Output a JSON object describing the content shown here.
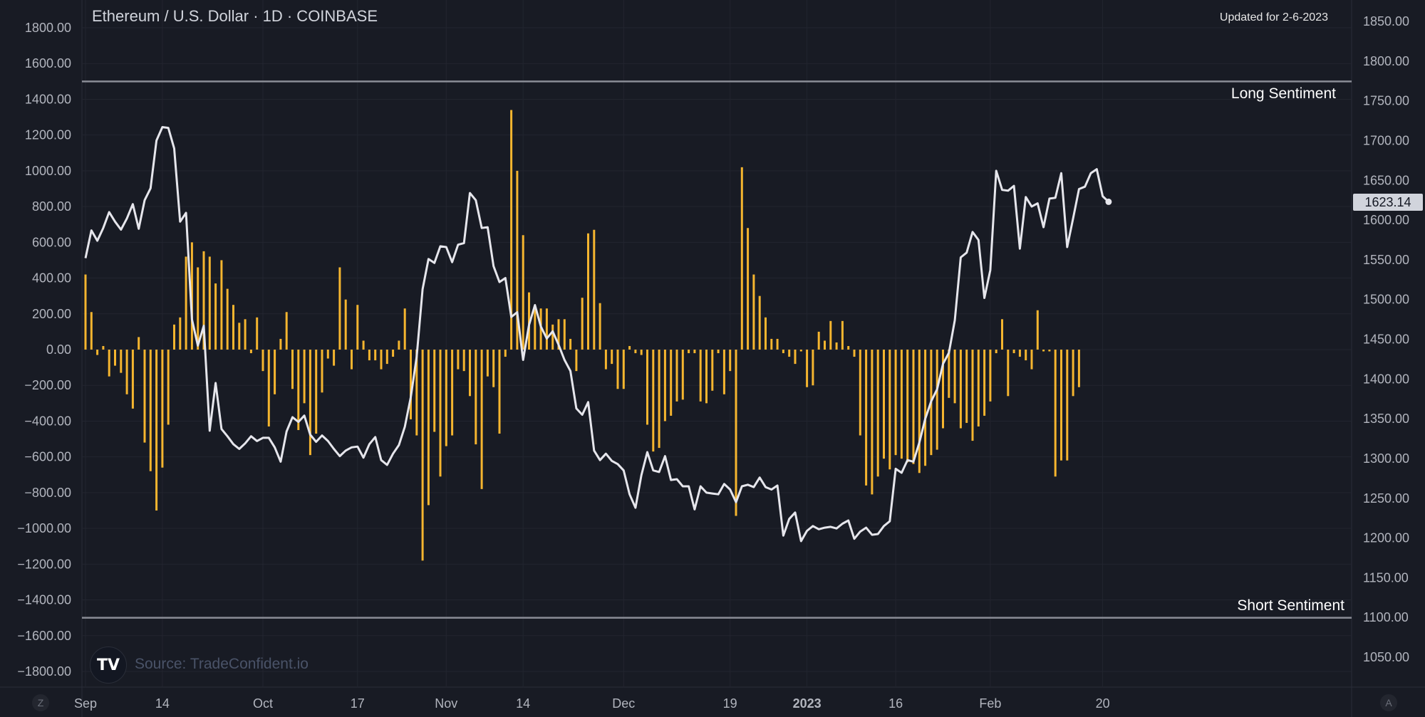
{
  "header": {
    "title": "Ethereum / U.S. Dollar · 1D · COINBASE",
    "updated": "Updated for 2-6-2023",
    "source": "Source: TradeConfident.io",
    "price_tag": "1623.14",
    "corner_left": "Z",
    "corner_right": "A"
  },
  "chart_data": {
    "type": "line+bar",
    "left_axis": {
      "ticks": [
        "1800.00",
        "1600.00",
        "1400.00",
        "1200.00",
        "1000.00",
        "800.00",
        "600.00",
        "400.00",
        "200.00",
        "0.00",
        "−200.00",
        "−400.00",
        "−600.00",
        "−800.00",
        "−1000.00",
        "−1200.00",
        "−1400.00",
        "−1600.00",
        "−1800.00"
      ],
      "range": [
        -1800,
        1800
      ]
    },
    "right_axis": {
      "ticks": [
        "1850.00",
        "1800.00",
        "1750.00",
        "1700.00",
        "1650.00",
        "1600.00",
        "1550.00",
        "1500.00",
        "1450.00",
        "1400.00",
        "1350.00",
        "1300.00",
        "1250.00",
        "1200.00",
        "1150.00",
        "1100.00",
        "1050.00"
      ],
      "range": [
        1050,
        1850
      ]
    },
    "x_ticks": [
      {
        "label": "Sep",
        "day": 0,
        "bold": false
      },
      {
        "label": "14",
        "day": 13,
        "bold": false
      },
      {
        "label": "Oct",
        "day": 30,
        "bold": false
      },
      {
        "label": "17",
        "day": 46,
        "bold": false
      },
      {
        "label": "Nov",
        "day": 61,
        "bold": false
      },
      {
        "label": "14",
        "day": 74,
        "bold": false
      },
      {
        "label": "Dec",
        "day": 91,
        "bold": false
      },
      {
        "label": "19",
        "day": 109,
        "bold": false
      },
      {
        "label": "2023",
        "day": 122,
        "bold": true
      },
      {
        "label": "16",
        "day": 137,
        "bold": false
      },
      {
        "label": "Feb",
        "day": 153,
        "bold": false
      },
      {
        "label": "20",
        "day": 172,
        "bold": false
      }
    ],
    "long_sentiment": {
      "label": "Long Sentiment",
      "value": 1500
    },
    "short_sentiment": {
      "label": "Short Sentiment",
      "value": -1500
    },
    "series": [
      {
        "name": "Sentiment",
        "axis": "left",
        "color": "#f5b52f",
        "type": "bar",
        "start_day": 0,
        "values": [
          420,
          210,
          -30,
          20,
          -150,
          -90,
          -130,
          -250,
          -330,
          70,
          -520,
          -680,
          -900,
          -660,
          -420,
          140,
          180,
          520,
          600,
          460,
          550,
          520,
          370,
          500,
          340,
          250,
          150,
          170,
          -20,
          180,
          -120,
          -430,
          -250,
          60,
          210,
          -220,
          -450,
          -300,
          -590,
          -470,
          -240,
          -50,
          -90,
          460,
          280,
          -110,
          250,
          50,
          -60,
          -60,
          -110,
          -80,
          -40,
          50,
          230,
          -390,
          -480,
          -1180,
          -870,
          -460,
          -710,
          -540,
          -480,
          -110,
          -120,
          -260,
          -530,
          -780,
          -150,
          -210,
          -470,
          -40,
          1340,
          1000,
          640,
          320,
          230,
          230,
          230,
          140,
          170,
          170,
          60,
          -120,
          290,
          650,
          670,
          260,
          -110,
          -80,
          -220,
          -220,
          20,
          -20,
          -30,
          -420,
          -570,
          -550,
          -400,
          -370,
          -290,
          -280,
          -20,
          -20,
          -290,
          -300,
          -230,
          -20,
          -250,
          -120,
          -930,
          1020,
          680,
          420,
          300,
          180,
          60,
          60,
          -20,
          -40,
          -80,
          -10,
          -210,
          -200,
          100,
          50,
          160,
          40,
          160,
          20,
          -40,
          -480,
          -760,
          -810,
          -710,
          -610,
          -670,
          -590,
          -610,
          -630,
          -640,
          -690,
          -650,
          -590,
          -560,
          -440,
          -270,
          -300,
          -440,
          -410,
          -510,
          -430,
          -370,
          -290,
          -20,
          170,
          -260,
          -20,
          -40,
          -60,
          -110,
          220,
          -10,
          -10,
          -710,
          -620,
          -620,
          -260,
          -210
        ],
        "bar_days_note": "sentiment bars"
      },
      {
        "name": "ETH/USD",
        "axis": "right",
        "color": "#e6e6ec",
        "type": "line",
        "start_day": 0,
        "values": [
          1552,
          1587,
          1574,
          1590,
          1610,
          1598,
          1588,
          1602,
          1620,
          1589,
          1625,
          1640,
          1700,
          1717,
          1716,
          1690,
          1598,
          1609,
          1475,
          1442,
          1467,
          1335,
          1395,
          1337,
          1328,
          1318,
          1312,
          1319,
          1328,
          1322,
          1326,
          1326,
          1314,
          1296,
          1334,
          1352,
          1346,
          1354,
          1330,
          1321,
          1329,
          1322,
          1312,
          1303,
          1310,
          1314,
          1315,
          1301,
          1318,
          1327,
          1298,
          1292,
          1306,
          1317,
          1340,
          1377,
          1428,
          1513,
          1551,
          1546,
          1567,
          1566,
          1547,
          1569,
          1571,
          1634,
          1625,
          1590,
          1591,
          1542,
          1522,
          1527,
          1478,
          1484,
          1424,
          1468,
          1493,
          1466,
          1451,
          1460,
          1443,
          1424,
          1410,
          1363,
          1355,
          1371,
          1310,
          1298,
          1306,
          1297,
          1293,
          1285,
          1255,
          1238,
          1279,
          1308,
          1285,
          1283,
          1303,
          1273,
          1274,
          1265,
          1265,
          1236,
          1265,
          1257,
          1256,
          1255,
          1268,
          1261,
          1245,
          1265,
          1267,
          1264,
          1276,
          1264,
          1261,
          1266,
          1203,
          1224,
          1232,
          1196,
          1209,
          1215,
          1211,
          1213,
          1214,
          1212,
          1218,
          1222,
          1199,
          1208,
          1213,
          1204,
          1205,
          1215,
          1221,
          1287,
          1282,
          1298,
          1296,
          1320,
          1350,
          1372,
          1387,
          1419,
          1433,
          1474,
          1553,
          1559,
          1585,
          1575,
          1502,
          1537,
          1662,
          1638,
          1637,
          1643,
          1564,
          1629,
          1617,
          1621,
          1591,
          1627,
          1628,
          1659,
          1566,
          1602,
          1639,
          1642,
          1659,
          1664,
          1630,
          1623
        ],
        "last_value": 1623.14
      }
    ]
  }
}
